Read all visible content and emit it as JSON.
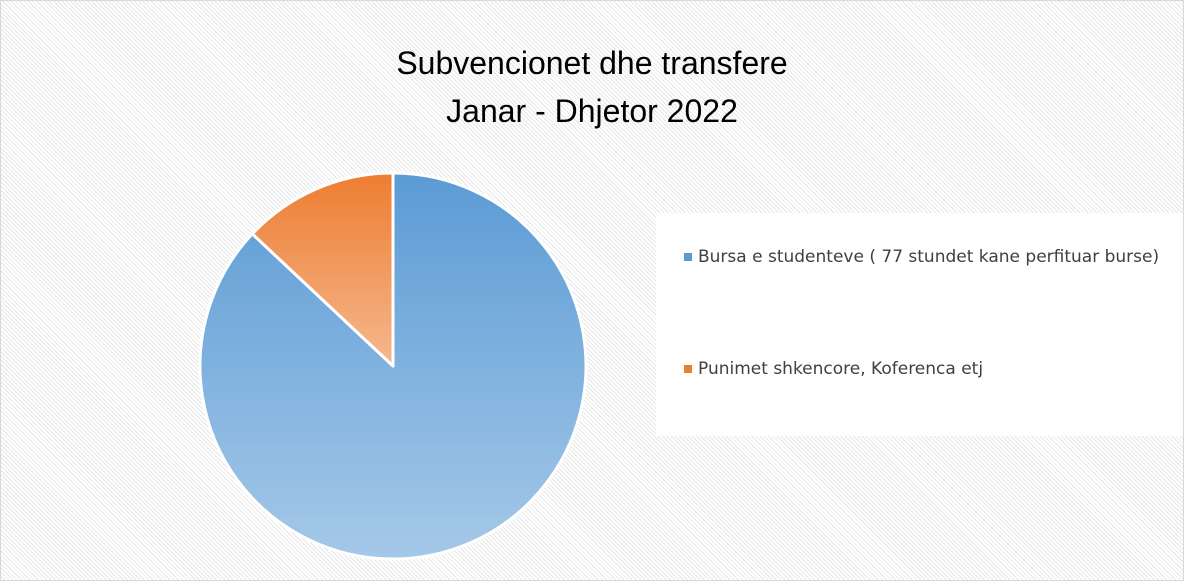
{
  "chart_data": {
    "type": "pie",
    "title": "Subvencionet dhe transfere",
    "subtitle": "Janar - Dhjetor 2022",
    "categories": [
      "Bursa e studenteve ( 77 stundet kane perfituar burse)",
      "Punimet shkencore, Koferenca etj"
    ],
    "values": [
      87,
      13
    ],
    "colors": [
      "#5b9bd5",
      "#ed7d31"
    ],
    "legend": "right"
  }
}
